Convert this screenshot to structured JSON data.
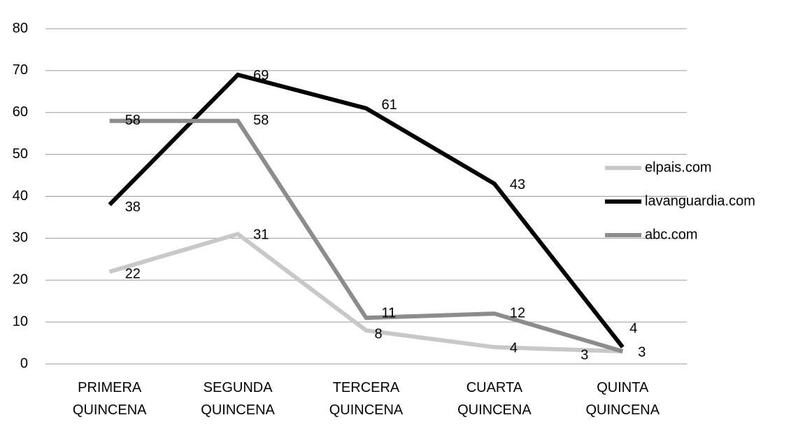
{
  "chart_data": {
    "type": "line",
    "categories": [
      "PRIMERA QUINCENA",
      "SEGUNDA QUINCENA",
      "TERCERA QUINCENA",
      "CUARTA QUINCENA",
      "QUINTA QUINCENA"
    ],
    "series": [
      {
        "name": "elpais.com",
        "color": "#c8c8c8",
        "values": [
          22,
          31,
          8,
          4,
          3
        ]
      },
      {
        "name": "lavanguardia.com",
        "color": "#000000",
        "values": [
          38,
          69,
          61,
          43,
          4
        ]
      },
      {
        "name": "abc.com",
        "color": "#8c8c8c",
        "values": [
          58,
          58,
          11,
          12,
          3
        ]
      }
    ],
    "ylim": [
      0,
      80
    ],
    "yticks": [
      0,
      10,
      20,
      30,
      40,
      50,
      60,
      70,
      80
    ],
    "grid": true,
    "legend": "right"
  }
}
